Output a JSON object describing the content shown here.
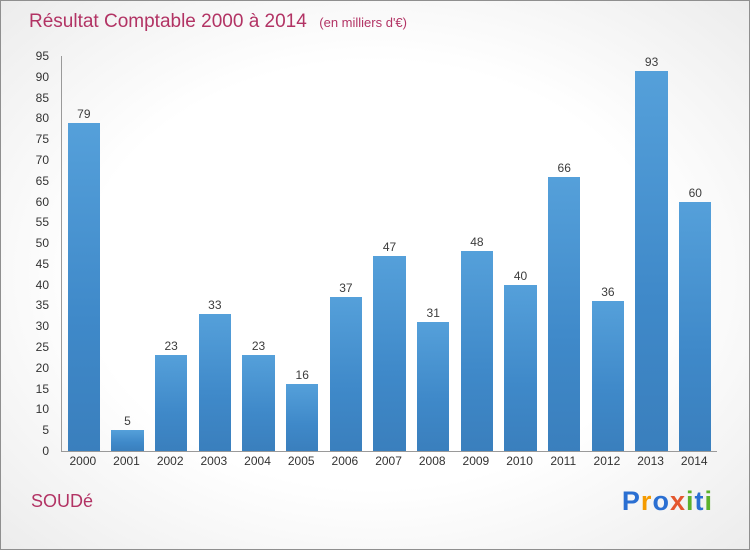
{
  "header": {
    "title": "Résultat Comptable 2000 à 2014",
    "subtitle": "(en milliers d'€)"
  },
  "footer": {
    "company": "SOUDé",
    "logo_letters": [
      {
        "char": "P",
        "color": "#2a6fd2"
      },
      {
        "char": "r",
        "color": "#f59b00"
      },
      {
        "char": "o",
        "color": "#2a6fd2"
      },
      {
        "char": "x",
        "color": "#e4572e"
      },
      {
        "char": "i",
        "color": "#5cb22c"
      },
      {
        "char": "t",
        "color": "#2a6fd2"
      },
      {
        "char": "i",
        "color": "#5cb22c"
      }
    ]
  },
  "chart_data": {
    "type": "bar",
    "title": "Résultat Comptable 2000 à 2014",
    "subtitle": "(en milliers d'€)",
    "categories": [
      "2000",
      "2001",
      "2002",
      "2003",
      "2004",
      "2005",
      "2006",
      "2007",
      "2008",
      "2009",
      "2010",
      "2011",
      "2012",
      "2013",
      "2014"
    ],
    "values": [
      79,
      5,
      23,
      33,
      23,
      16,
      37,
      47,
      31,
      48,
      40,
      66,
      36,
      93,
      60
    ],
    "xlabel": "",
    "ylabel": "",
    "ylim": [
      0,
      95
    ],
    "ytick_step": 5,
    "bar_color": "#4292d2",
    "grid": false,
    "legend": false
  }
}
